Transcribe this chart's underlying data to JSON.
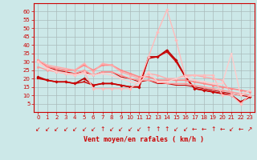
{
  "background_color": "#cce8e8",
  "grid_color": "#aabbbb",
  "xlabel": "Vent moyen/en rafales ( km/h )",
  "xlabel_color": "#cc0000",
  "xlim": [
    -0.5,
    23.5
  ],
  "ylim": [
    0,
    65
  ],
  "yticks": [
    5,
    10,
    15,
    20,
    25,
    30,
    35,
    40,
    45,
    50,
    55,
    60
  ],
  "xticks": [
    0,
    1,
    2,
    3,
    4,
    5,
    6,
    7,
    8,
    9,
    10,
    11,
    12,
    13,
    14,
    15,
    16,
    17,
    18,
    19,
    20,
    21,
    22,
    23
  ],
  "lines": [
    {
      "x": [
        0,
        1,
        2,
        3,
        4,
        5,
        6,
        7,
        8,
        9,
        10,
        11,
        12,
        13,
        14,
        15,
        16,
        17,
        18,
        19,
        20,
        21,
        22,
        23
      ],
      "y": [
        21,
        19,
        18,
        18,
        17,
        20,
        16,
        17,
        17,
        16,
        15,
        15,
        33,
        33,
        37,
        31,
        21,
        14,
        13,
        12,
        11,
        10,
        6,
        9
      ],
      "color": "#bb0000",
      "lw": 1.2,
      "marker": "D",
      "ms": 1.8
    },
    {
      "x": [
        0,
        1,
        2,
        3,
        4,
        5,
        6,
        7,
        8,
        9,
        10,
        11,
        12,
        13,
        14,
        15,
        16,
        17,
        18,
        19,
        20,
        21,
        22,
        23
      ],
      "y": [
        20,
        19,
        18,
        18,
        17,
        18,
        16,
        17,
        17,
        16,
        15,
        15,
        32,
        33,
        36,
        30,
        21,
        14,
        13,
        12,
        11,
        10,
        6,
        9
      ],
      "color": "#cc0000",
      "lw": 1.0,
      "marker": "s",
      "ms": 1.5
    },
    {
      "x": [
        0,
        1,
        2,
        3,
        4,
        5,
        6,
        7,
        8,
        9,
        10,
        11,
        12,
        13,
        14,
        15,
        16,
        17,
        18,
        19,
        20,
        21,
        22,
        23
      ],
      "y": [
        31,
        27,
        25,
        24,
        23,
        24,
        22,
        24,
        24,
        21,
        20,
        18,
        19,
        17,
        17,
        16,
        16,
        15,
        14,
        13,
        12,
        11,
        10,
        9
      ],
      "color": "#cc0000",
      "lw": 0.8,
      "marker": null,
      "ms": 0
    },
    {
      "x": [
        0,
        1,
        2,
        3,
        4,
        5,
        6,
        7,
        8,
        9,
        10,
        11,
        12,
        13,
        14,
        15,
        16,
        17,
        18,
        19,
        20,
        21,
        22,
        23
      ],
      "y": [
        31,
        27,
        26,
        25,
        25,
        28,
        25,
        28,
        28,
        25,
        23,
        21,
        21,
        19,
        19,
        19,
        19,
        18,
        17,
        16,
        15,
        14,
        13,
        12
      ],
      "color": "#ff8888",
      "lw": 1.2,
      "marker": "o",
      "ms": 2.0
    },
    {
      "x": [
        0,
        1,
        2,
        3,
        4,
        5,
        6,
        7,
        8,
        9,
        10,
        11,
        12,
        13,
        14,
        15,
        16,
        17,
        18,
        19,
        20,
        21,
        22,
        23
      ],
      "y": [
        27,
        25,
        24,
        23,
        23,
        25,
        22,
        24,
        24,
        22,
        20,
        19,
        19,
        18,
        17,
        17,
        17,
        16,
        15,
        14,
        13,
        12,
        11,
        10
      ],
      "color": "#ff9999",
      "lw": 1.0,
      "marker": "o",
      "ms": 1.8
    },
    {
      "x": [
        0,
        1,
        2,
        3,
        4,
        5,
        6,
        7,
        8,
        9,
        10,
        11,
        12,
        13,
        14,
        15,
        16,
        17,
        18,
        19,
        20,
        21,
        22,
        23
      ],
      "y": [
        31,
        28,
        27,
        26,
        25,
        29,
        24,
        29,
        28,
        24,
        22,
        20,
        23,
        22,
        20,
        20,
        22,
        22,
        21,
        20,
        19,
        11,
        10,
        13
      ],
      "color": "#ffaaaa",
      "lw": 1.0,
      "marker": "^",
      "ms": 2.0
    },
    {
      "x": [
        0,
        1,
        2,
        3,
        4,
        5,
        6,
        7,
        8,
        9,
        10,
        11,
        12,
        13,
        14,
        15,
        16,
        17,
        18,
        19,
        20,
        21,
        22,
        23
      ],
      "y": [
        30,
        26,
        24,
        23,
        22,
        24,
        14,
        14,
        14,
        14,
        14,
        18,
        33,
        48,
        61,
        43,
        21,
        22,
        22,
        22,
        10,
        10,
        5,
        10
      ],
      "color": "#ffbbbb",
      "lw": 1.0,
      "marker": "D",
      "ms": 2.0
    },
    {
      "x": [
        0,
        1,
        2,
        3,
        4,
        5,
        6,
        7,
        8,
        9,
        10,
        11,
        12,
        13,
        14,
        15,
        16,
        17,
        18,
        19,
        20,
        21,
        22,
        23
      ],
      "y": [
        30,
        26,
        24,
        23,
        22,
        23,
        22,
        23,
        22,
        20,
        18,
        17,
        24,
        18,
        18,
        20,
        21,
        19,
        18,
        17,
        17,
        35,
        10,
        13
      ],
      "color": "#ffcccc",
      "lw": 1.0,
      "marker": "v",
      "ms": 1.8
    }
  ],
  "wind_arrows": [
    "↙",
    "↙",
    "↙",
    "↙",
    "↙",
    "↙",
    "↙",
    "↑",
    "↙",
    "↙",
    "↙",
    "↙",
    "↑",
    "↑",
    "↑",
    "↙",
    "↙",
    "←",
    "←",
    "↑",
    "←",
    "↙",
    "←",
    "↗"
  ],
  "arrow_color": "#cc0000",
  "tick_color": "#cc0000",
  "font_size_axis": 6,
  "font_size_tick": 5.0,
  "font_size_arrow": 5.5
}
